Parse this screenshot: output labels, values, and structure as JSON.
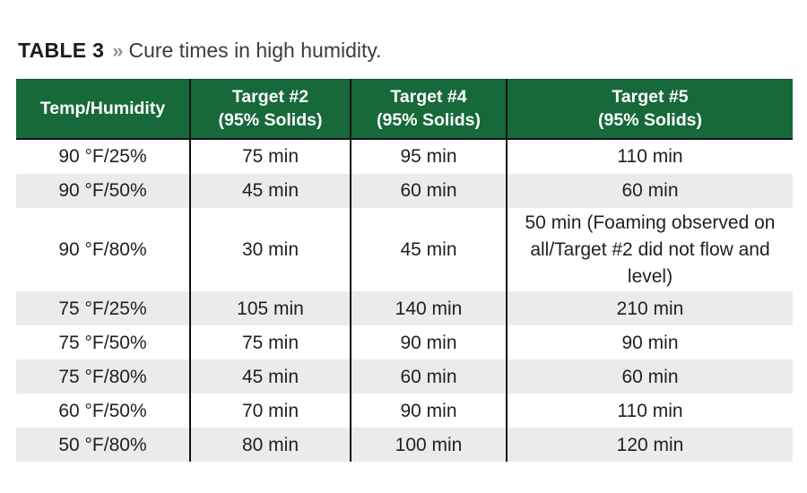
{
  "title": {
    "label": "TABLE 3",
    "separator": "»",
    "caption": "Cure times in high humidity."
  },
  "colors": {
    "header_bg": "#17693a",
    "header_text": "#ffffff",
    "row_bg": "#ffffff",
    "row_alt_bg": "#eaebec",
    "divider": "#111111",
    "body_text": "#1f1f1f",
    "chevron": "#8f969a"
  },
  "table": {
    "columns": [
      "Temp/Humidity",
      "Target #2\n(95% Solids)",
      "Target #4\n(95% Solids)",
      "Target #5\n(95% Solids)"
    ],
    "rows": [
      [
        "90 °F/25%",
        "75 min",
        "95 min",
        "110 min"
      ],
      [
        "90 °F/50%",
        "45 min",
        "60 min",
        "60 min"
      ],
      [
        "90 °F/80%",
        "30 min",
        "45 min",
        "50 min (Foaming observed on all/Target #2 did not flow and level)"
      ],
      [
        "75 °F/25%",
        "105 min",
        "140 min",
        "210 min"
      ],
      [
        "75 °F/50%",
        "75 min",
        "90 min",
        "90 min"
      ],
      [
        "75 °F/80%",
        "45 min",
        "60 min",
        "60 min"
      ],
      [
        "60 °F/50%",
        "70 min",
        "90 min",
        "110 min"
      ],
      [
        "50 °F/80%",
        "80 min",
        "100 min",
        "120 min"
      ]
    ]
  }
}
